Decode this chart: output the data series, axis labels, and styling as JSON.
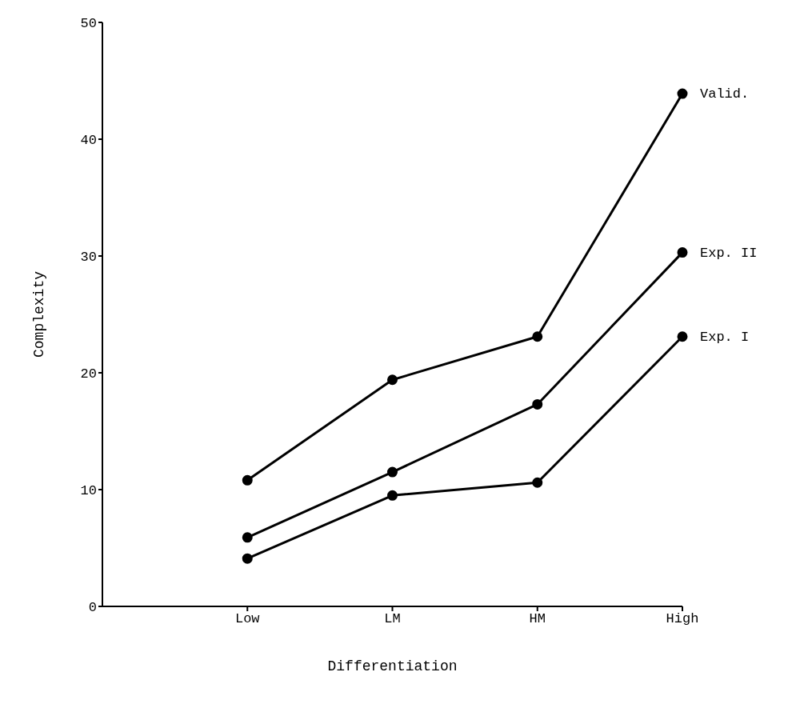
{
  "chart_data": {
    "type": "line",
    "xlabel": "Differentiation",
    "ylabel": "Complexity",
    "categories": [
      "Low",
      "LM",
      "HM",
      "High"
    ],
    "series": [
      {
        "name": "Valid.",
        "color": "#000000",
        "values": [
          10.8,
          19.4,
          23.1,
          43.9
        ]
      },
      {
        "name": "Exp. II",
        "color": "#000000",
        "values": [
          5.9,
          11.5,
          17.3,
          30.3
        ]
      },
      {
        "name": "Exp. I",
        "color": "#000000",
        "values": [
          4.1,
          9.5,
          10.6,
          23.1
        ]
      }
    ],
    "ylim": [
      0,
      50
    ],
    "yticks": [
      0,
      10,
      20,
      30,
      40,
      50
    ],
    "grid": false,
    "legend": false,
    "marker": "circle",
    "line_style": "solid"
  }
}
